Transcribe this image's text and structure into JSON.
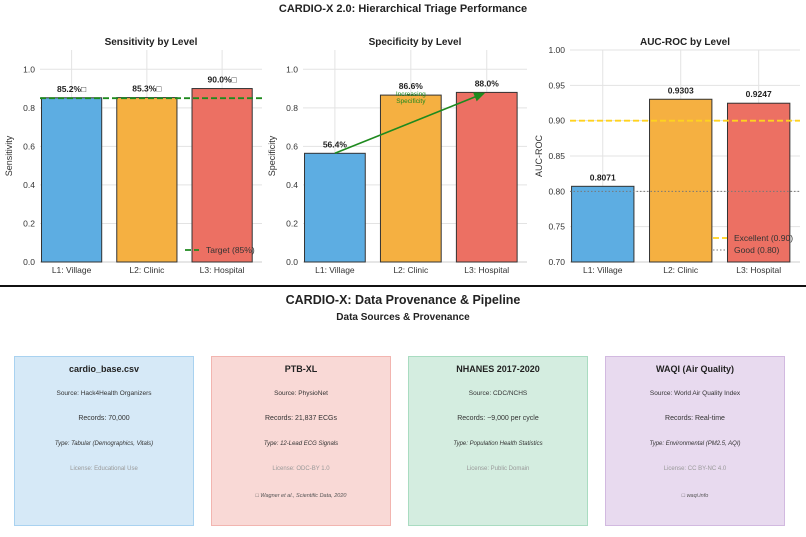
{
  "main_title": "CARDIO-X 2.0: Hierarchical Triage Performance",
  "chart_data": [
    {
      "type": "bar",
      "title": "Sensitivity by Level",
      "ylabel": "Sensitivity",
      "categories": [
        "L1: Village",
        "L2: Clinic",
        "L3: Hospital"
      ],
      "values": [
        0.852,
        0.853,
        0.9
      ],
      "value_labels": [
        "85.2%□",
        "85.3%□",
        "90.0%□"
      ],
      "colors": [
        "#5DADE2",
        "#F5B041",
        "#EC7063"
      ],
      "ylim": [
        0,
        1.1
      ],
      "yticks": [
        "0.0",
        "0.2",
        "0.4",
        "0.6",
        "0.8",
        "1.0"
      ],
      "ytick_values": [
        0,
        0.2,
        0.4,
        0.6,
        0.8,
        1.0
      ],
      "grid": true,
      "reference_lines": [
        {
          "y": 0.85,
          "label": "Target (85%)",
          "color": "#1E8A1E",
          "style": "dashed"
        }
      ],
      "legend": "lower-right"
    },
    {
      "type": "bar",
      "title": "Specificity by Level",
      "ylabel": "Specificity",
      "categories": [
        "L1: Village",
        "L2: Clinic",
        "L3: Hospital"
      ],
      "values": [
        0.564,
        0.866,
        0.88
      ],
      "value_labels": [
        "56.4%",
        "86.6%",
        "88.0%"
      ],
      "colors": [
        "#5DADE2",
        "#F5B041",
        "#EC7063"
      ],
      "ylim": [
        0,
        1.1
      ],
      "yticks": [
        "0.0",
        "0.2",
        "0.4",
        "0.6",
        "0.8",
        "1.0"
      ],
      "ytick_values": [
        0,
        0.2,
        0.4,
        0.6,
        0.8,
        1.0
      ],
      "grid": true,
      "annotation": {
        "text_lines": [
          "Increasing",
          "Specificity"
        ],
        "color": "#1E8A1E",
        "arrow_from": [
          0,
          0.564
        ],
        "arrow_to": [
          2,
          0.88
        ]
      }
    },
    {
      "type": "bar",
      "title": "AUC-ROC by Level",
      "ylabel": "AUC-ROC",
      "categories": [
        "L1: Village",
        "L2: Clinic",
        "L3: Hospital"
      ],
      "values": [
        0.8071,
        0.9303,
        0.9247
      ],
      "value_labels": [
        "0.8071",
        "0.9303",
        "0.9247"
      ],
      "colors": [
        "#5DADE2",
        "#F5B041",
        "#EC7063"
      ],
      "ylim": [
        0.7,
        1.0
      ],
      "yticks": [
        "0.70",
        "0.75",
        "0.80",
        "0.85",
        "0.90",
        "0.95",
        "1.00"
      ],
      "ytick_values": [
        0.7,
        0.75,
        0.8,
        0.85,
        0.9,
        0.95,
        1.0
      ],
      "grid": true,
      "reference_lines": [
        {
          "y": 0.9,
          "label": "Excellent (0.90)",
          "color": "#FFD21F",
          "style": "dashed"
        },
        {
          "y": 0.8,
          "label": "Good (0.80)",
          "color": "#777777",
          "style": "dotted"
        }
      ],
      "legend": "lower-right"
    }
  ],
  "provenance": {
    "title": "CARDIO-X: Data Provenance & Pipeline",
    "subtitle": "Data Sources & Provenance",
    "cards": [
      {
        "title": "cardio_base.csv",
        "source": "Source: Hack4Health Organizers",
        "records": "Records: 70,000",
        "type": "Type: Tabular (Demographics, Vitals)",
        "license": "License: Educational Use",
        "citation": "",
        "bg": "#D6E9F7",
        "border": "#A9D2F0"
      },
      {
        "title": "PTB-XL",
        "source": "Source: PhysioNet",
        "records": "Records: 21,837 ECGs",
        "type": "Type: 12-Lead ECG Signals",
        "license": "License: ODC-BY 1.0",
        "citation": "□ Wagner et al., Scientific Data, 2020",
        "bg": "#F9D9D6",
        "border": "#F2B5B0"
      },
      {
        "title": "NHANES 2017-2020",
        "source": "Source: CDC/NCHS",
        "records": "Records: ~9,000 per cycle",
        "type": "Type: Population Health Statistics",
        "license": "License: Public Domain",
        "citation": "",
        "bg": "#D4EDE0",
        "border": "#A9DCC1"
      },
      {
        "title": "WAQI (Air Quality)",
        "source": "Source: World Air Quality Index",
        "records": "Records: Real-time",
        "type": "Type: Environmental (PM2.5, AQI)",
        "license": "License: CC BY-NC 4.0",
        "citation": "□ waqi.info",
        "bg": "#E8DAEF",
        "border": "#D2B9E0"
      }
    ]
  }
}
